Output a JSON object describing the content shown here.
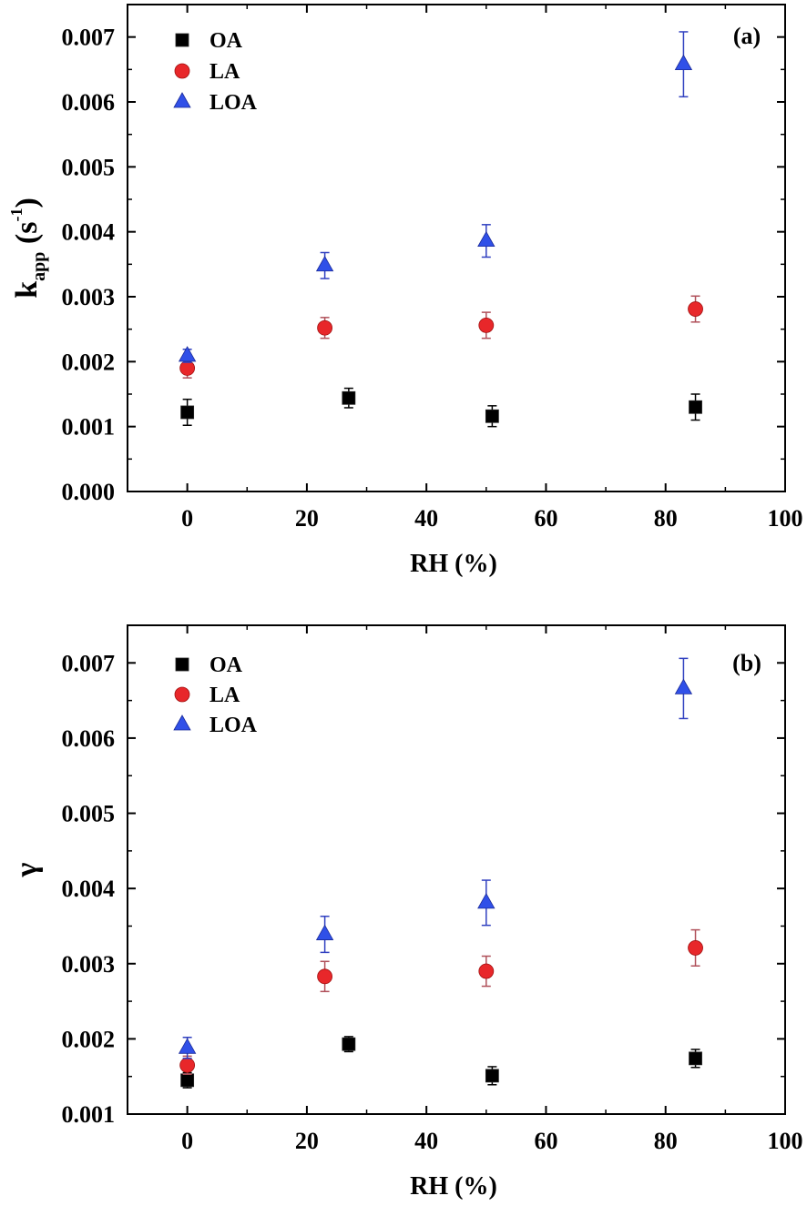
{
  "chart_data": [
    {
      "type": "scatter",
      "panel_label": "(a)",
      "xlabel": "RH (%)",
      "ylabel": {
        "main": "k",
        "sub": "app",
        "unit_open": " (s",
        "unit_sup": "-1",
        "unit_close": ")"
      },
      "xlim": [
        -10,
        100
      ],
      "ylim": [
        0.0,
        0.0075
      ],
      "x_ticks": [
        0,
        20,
        40,
        60,
        80,
        100
      ],
      "y_ticks": [
        "0.000",
        "0.001",
        "0.002",
        "0.003",
        "0.004",
        "0.005",
        "0.006",
        "0.007"
      ],
      "legend_position": "top-left",
      "error_bars": true,
      "series": [
        {
          "name": "OA",
          "marker": "square",
          "color": "#000000",
          "x": [
            0,
            27,
            51,
            85
          ],
          "y": [
            0.00122,
            0.00144,
            0.00116,
            0.0013
          ],
          "err": [
            0.0002,
            0.00015,
            0.00016,
            0.0002
          ]
        },
        {
          "name": "LA",
          "marker": "circle",
          "color": "#e8272a",
          "x": [
            0,
            23,
            50,
            85
          ],
          "y": [
            0.0019,
            0.00252,
            0.00256,
            0.00281
          ],
          "err": [
            0.00015,
            0.00016,
            0.0002,
            0.0002
          ]
        },
        {
          "name": "LOA",
          "marker": "triangle",
          "color": "#3050e8",
          "x": [
            0,
            23,
            50,
            83
          ],
          "y": [
            0.00209,
            0.00348,
            0.00386,
            0.00658
          ],
          "err": [
            0.0001,
            0.0002,
            0.00025,
            0.0005
          ]
        }
      ]
    },
    {
      "type": "scatter",
      "panel_label": "(b)",
      "xlabel": "RH (%)",
      "ylabel": {
        "main": "γ"
      },
      "xlim": [
        -10,
        100
      ],
      "ylim": [
        0.001,
        0.0075
      ],
      "x_ticks": [
        0,
        20,
        40,
        60,
        80,
        100
      ],
      "y_ticks": [
        "0.001",
        "0.002",
        "0.003",
        "0.004",
        "0.005",
        "0.006",
        "0.007"
      ],
      "legend_position": "top-left",
      "error_bars": true,
      "series": [
        {
          "name": "OA",
          "marker": "square",
          "color": "#000000",
          "x": [
            0,
            27,
            51,
            85
          ],
          "y": [
            0.00145,
            0.00193,
            0.00151,
            0.00174
          ],
          "err": [
            0.0001,
            0.0001,
            0.00012,
            0.00012
          ]
        },
        {
          "name": "LA",
          "marker": "circle",
          "color": "#e8272a",
          "x": [
            0,
            23,
            50,
            85
          ],
          "y": [
            0.00165,
            0.00283,
            0.0029,
            0.00321
          ],
          "err": [
            0.00012,
            0.0002,
            0.0002,
            0.00024
          ]
        },
        {
          "name": "LOA",
          "marker": "triangle",
          "color": "#3050e8",
          "x": [
            0,
            23,
            50,
            83
          ],
          "y": [
            0.00188,
            0.00339,
            0.00381,
            0.00666
          ],
          "err": [
            0.00014,
            0.00024,
            0.0003,
            0.0004
          ]
        }
      ]
    }
  ]
}
